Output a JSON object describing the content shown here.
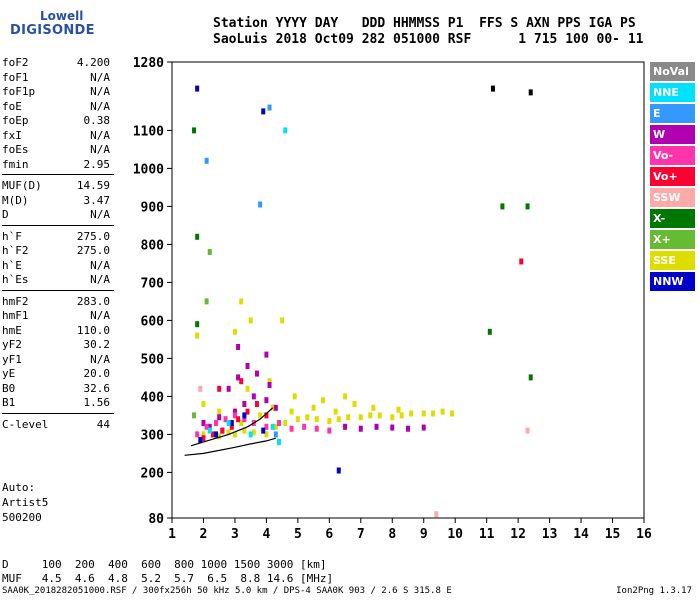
{
  "logo": {
    "line1": "Lowell",
    "line2": "DIGISONDE"
  },
  "header": {
    "line1": "Station YYYY DAY   DDD HHMMSS P1  FFS S AXN PPS IGA PS",
    "line2": "SaoLuis 2018 Oct09 282 051000 RSF      1 715 100 00- 11"
  },
  "params": [
    {
      "name": "foF2",
      "value": "4.200"
    },
    {
      "name": "foF1",
      "value": "N/A"
    },
    {
      "name": "foF1p",
      "value": "N/A"
    },
    {
      "name": "foE",
      "value": "N/A"
    },
    {
      "name": "foEp",
      "value": "0.38"
    },
    {
      "name": "fxI",
      "value": "N/A"
    },
    {
      "name": "foEs",
      "value": "N/A"
    },
    {
      "name": "fmin",
      "value": "2.95"
    },
    {
      "name": "MUF(D)",
      "value": "14.59"
    },
    {
      "name": "M(D)",
      "value": "3.47"
    },
    {
      "name": "D",
      "value": "N/A"
    },
    {
      "name": "h`F",
      "value": "275.0"
    },
    {
      "name": "h`F2",
      "value": "275.0"
    },
    {
      "name": "h`E",
      "value": "N/A"
    },
    {
      "name": "h`Es",
      "value": "N/A"
    },
    {
      "name": "hmF2",
      "value": "283.0"
    },
    {
      "name": "hmF1",
      "value": "N/A"
    },
    {
      "name": "hmE",
      "value": "110.0"
    },
    {
      "name": "yF2",
      "value": "30.2"
    },
    {
      "name": "yF1",
      "value": "N/A"
    },
    {
      "name": "yE",
      "value": "20.0"
    },
    {
      "name": "B0",
      "value": "32.6"
    },
    {
      "name": "B1",
      "value": "1.56"
    },
    {
      "name": "C-level",
      "value": "44"
    }
  ],
  "auto": {
    "line1": "Auto:",
    "line2": "Artist5",
    "line3": "500200"
  },
  "legend": [
    {
      "label": "NoVal",
      "color": "#8a8a8a"
    },
    {
      "label": "NNE",
      "color": "#00e0ff"
    },
    {
      "label": "E",
      "color": "#3399ff"
    },
    {
      "label": "W",
      "color": "#b000b0"
    },
    {
      "label": "Vo-",
      "color": "#ff33aa"
    },
    {
      "label": "Vo+",
      "color": "#ff0033"
    },
    {
      "label": "SSW",
      "color": "#ffaaaa"
    },
    {
      "label": "X-",
      "color": "#007700"
    },
    {
      "label": "X+",
      "color": "#66bb33"
    },
    {
      "label": "SSE",
      "color": "#dddd00"
    },
    {
      "label": "NNW",
      "color": "#0000cc"
    }
  ],
  "dmuf": {
    "d_line": "D     100  200  400  600  800 1000 1500 3000 [km]",
    "muf_line": "MUF   4.5  4.6  4.8  5.2  5.7  6.5  8.8 14.6 [MHz]"
  },
  "footer": "SAA0K_2018282051000.RSF / 300fx256h 50 kHz 5.0 km / DPS-4 SAA0K 903 / 2.6 S 315.8 E",
  "version": "Ion2Png 1.3.17",
  "chart_data": {
    "type": "scatter",
    "xlim": [
      1,
      16
    ],
    "ylim": [
      80,
      1280
    ],
    "xticks": [
      "1",
      "2",
      "3",
      "4",
      "5",
      "6",
      "7",
      "8",
      "9",
      "10",
      "11",
      "12",
      "13",
      "14",
      "15",
      "16"
    ],
    "yticks": [
      {
        "v": 80,
        "label": "80"
      },
      {
        "v": 200,
        "label": "200"
      },
      {
        "v": 300,
        "label": "300"
      },
      {
        "v": 400,
        "label": "400"
      },
      {
        "v": 500,
        "label": "500"
      },
      {
        "v": 600,
        "label": "600"
      },
      {
        "v": 700,
        "label": "700"
      },
      {
        "v": 800,
        "label": "800"
      },
      {
        "v": 900,
        "label": "900"
      },
      {
        "v": 1000,
        "label": "1000"
      },
      {
        "v": 1100,
        "label": "1100"
      },
      {
        "v": 1280,
        "label": "1280"
      }
    ],
    "grid": false,
    "legend_position": "right",
    "series": [
      {
        "color": "#dddd00",
        "points": [
          [
            2.0,
            300
          ],
          [
            2.2,
            310
          ],
          [
            2.5,
            295
          ],
          [
            2.8,
            305
          ],
          [
            3.0,
            300
          ],
          [
            3.3,
            310
          ],
          [
            3.6,
            305
          ],
          [
            4.0,
            300
          ],
          [
            4.3,
            320
          ],
          [
            4.6,
            330
          ],
          [
            5.0,
            340
          ],
          [
            5.3,
            345
          ],
          [
            5.6,
            340
          ],
          [
            6.0,
            335
          ],
          [
            6.3,
            340
          ],
          [
            6.6,
            345
          ],
          [
            7.0,
            345
          ],
          [
            7.3,
            350
          ],
          [
            7.6,
            350
          ],
          [
            8.0,
            345
          ],
          [
            8.3,
            350
          ],
          [
            8.6,
            355
          ],
          [
            9.0,
            355
          ],
          [
            9.3,
            355
          ],
          [
            9.6,
            360
          ],
          [
            9.9,
            355
          ],
          [
            3.0,
            570
          ],
          [
            3.5,
            600
          ],
          [
            3.2,
            650
          ],
          [
            4.5,
            600
          ],
          [
            1.8,
            560
          ],
          [
            2.0,
            380
          ],
          [
            2.5,
            360
          ],
          [
            3.2,
            330
          ],
          [
            3.8,
            350
          ],
          [
            4.2,
            370
          ],
          [
            4.8,
            360
          ],
          [
            5.5,
            370
          ],
          [
            6.2,
            360
          ],
          [
            6.8,
            380
          ],
          [
            7.4,
            370
          ],
          [
            8.2,
            365
          ],
          [
            3.4,
            420
          ],
          [
            4.1,
            440
          ],
          [
            4.9,
            400
          ],
          [
            5.8,
            390
          ],
          [
            6.5,
            400
          ]
        ]
      },
      {
        "color": "#b000b0",
        "points": [
          [
            2.0,
            330
          ],
          [
            2.5,
            345
          ],
          [
            3.0,
            360
          ],
          [
            3.3,
            380
          ],
          [
            3.6,
            400
          ],
          [
            4.0,
            390
          ],
          [
            4.3,
            370
          ],
          [
            2.8,
            420
          ],
          [
            3.1,
            450
          ],
          [
            3.4,
            480
          ],
          [
            3.7,
            460
          ],
          [
            4.1,
            430
          ],
          [
            6.5,
            320
          ],
          [
            7.0,
            315
          ],
          [
            7.5,
            320
          ],
          [
            8.0,
            318
          ],
          [
            8.5,
            315
          ],
          [
            9.0,
            318
          ],
          [
            2.2,
            320
          ],
          [
            2.6,
            310
          ],
          [
            3.1,
            530
          ],
          [
            4.0,
            510
          ]
        ]
      },
      {
        "color": "#ff33aa",
        "points": [
          [
            1.8,
            300
          ],
          [
            2.1,
            320
          ],
          [
            2.4,
            330
          ],
          [
            2.7,
            340
          ],
          [
            3.0,
            350
          ],
          [
            3.3,
            340
          ],
          [
            3.6,
            330
          ],
          [
            4.0,
            320
          ],
          [
            4.4,
            330
          ],
          [
            4.8,
            315
          ],
          [
            5.2,
            320
          ],
          [
            5.6,
            315
          ],
          [
            6.0,
            310
          ]
        ]
      },
      {
        "color": "#ff0033",
        "points": [
          [
            2.0,
            290
          ],
          [
            2.3,
            300
          ],
          [
            2.6,
            310
          ],
          [
            2.9,
            320
          ],
          [
            3.1,
            340
          ],
          [
            3.4,
            360
          ],
          [
            3.7,
            380
          ],
          [
            4.0,
            350
          ],
          [
            2.5,
            420
          ],
          [
            3.2,
            440
          ]
        ]
      },
      {
        "color": "#0000cc",
        "points": [
          [
            1.9,
            285
          ],
          [
            2.4,
            300
          ],
          [
            2.9,
            330
          ],
          [
            3.3,
            350
          ],
          [
            3.9,
            310
          ],
          [
            6.3,
            205
          ],
          [
            1.8,
            1210
          ],
          [
            3.9,
            1150
          ]
        ]
      },
      {
        "color": "#00e0ff",
        "points": [
          [
            2.2,
            310
          ],
          [
            2.8,
            330
          ],
          [
            3.5,
            300
          ],
          [
            4.2,
            320
          ],
          [
            4.6,
            1100
          ],
          [
            4.4,
            280
          ]
        ]
      },
      {
        "color": "#3399ff",
        "points": [
          [
            2.1,
            1020
          ],
          [
            3.8,
            905
          ],
          [
            4.1,
            1160
          ],
          [
            4.3,
            300
          ]
        ]
      },
      {
        "color": "#007700",
        "points": [
          [
            1.7,
            1100
          ],
          [
            1.8,
            820
          ],
          [
            1.8,
            590
          ],
          [
            11.5,
            900
          ],
          [
            12.3,
            900
          ],
          [
            12.4,
            450
          ],
          [
            11.1,
            570
          ]
        ]
      },
      {
        "color": "#66bb33",
        "points": [
          [
            2.2,
            780
          ],
          [
            1.7,
            350
          ],
          [
            2.1,
            650
          ]
        ]
      },
      {
        "color": "#ff0033",
        "points": [
          [
            12.1,
            755
          ]
        ]
      },
      {
        "color": "#000000",
        "points": [
          [
            11.2,
            1210
          ],
          [
            12.4,
            1200
          ]
        ]
      },
      {
        "color": "#ffaaaa",
        "points": [
          [
            1.9,
            420
          ],
          [
            9.4,
            90
          ],
          [
            12.3,
            310
          ]
        ]
      }
    ],
    "trace": {
      "color": "#000000",
      "points": [
        [
          1.4,
          245
        ],
        [
          2.0,
          250
        ],
        [
          2.5,
          258
        ],
        [
          3.0,
          266
        ],
        [
          3.5,
          275
        ],
        [
          4.0,
          283
        ],
        [
          4.3,
          290
        ]
      ]
    },
    "trace2": {
      "color": "#000000",
      "points": [
        [
          1.6,
          270
        ],
        [
          2.2,
          285
        ],
        [
          2.8,
          300
        ],
        [
          3.4,
          320
        ],
        [
          3.8,
          340
        ],
        [
          4.2,
          370
        ]
      ]
    }
  }
}
